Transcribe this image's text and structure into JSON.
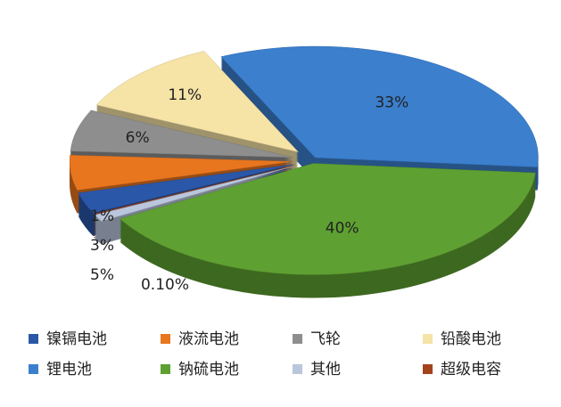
{
  "chart_data": {
    "type": "pie",
    "categories": [
      "锂电池",
      "钠硫电池",
      "其他",
      "超级电容",
      "镍镉电池",
      "液流电池",
      "飞轮",
      "铅酸电池"
    ],
    "values": [
      33,
      40,
      1,
      0.1,
      3,
      5,
      6,
      11
    ],
    "value_labels": [
      "33%",
      "40%",
      "1%",
      "0.10%",
      "3%",
      "5%",
      "6%",
      "11%"
    ],
    "colors": [
      "#3b7fcd",
      "#5fa032",
      "#b9c6dc",
      "#a3431c",
      "#2b57a8",
      "#e8761f",
      "#8e8e8e",
      "#f6e3a6"
    ],
    "legend": [
      "镍镉电池",
      "液流电池",
      "飞轮",
      "铅酸电池",
      "锂电池",
      "钠硫电池",
      "其他",
      "超级电容"
    ],
    "legend_colors": [
      "#2b57a8",
      "#e8761f",
      "#8e8e8e",
      "#f6e3a6",
      "#3b7fcd",
      "#5fa032",
      "#b9c6dc",
      "#a3431c"
    ]
  }
}
